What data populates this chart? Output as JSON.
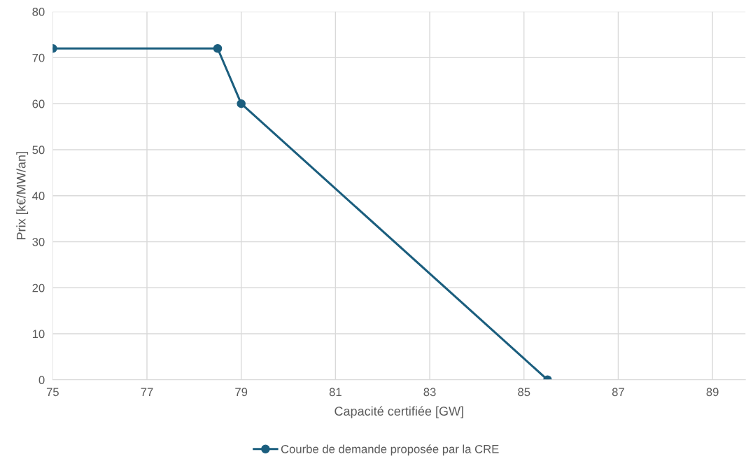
{
  "chart_data": {
    "type": "line",
    "xlabel": "Capacité certifiée [GW]",
    "ylabel": "Prix [k€/MW/an]",
    "series": [
      {
        "name": "Courbe de demande proposée par la CRE",
        "color": "#1b5e7e",
        "x": [
          75,
          78.5,
          79,
          85.5
        ],
        "values": [
          72,
          72,
          60,
          0
        ]
      }
    ],
    "xlim": [
      75,
      89.7
    ],
    "xticks": [
      75,
      77,
      79,
      81,
      83,
      85,
      87,
      89
    ],
    "ylim": [
      0,
      80
    ],
    "yticks": [
      0,
      10,
      20,
      30,
      40,
      50,
      60,
      70,
      80
    ],
    "grid": true,
    "legend": "bottom",
    "marker": "circle",
    "line_style": "solid"
  }
}
